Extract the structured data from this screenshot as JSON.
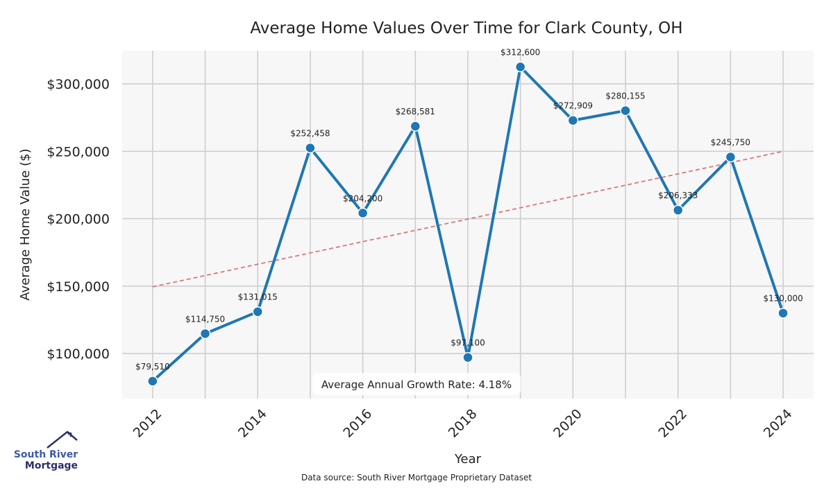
{
  "chart_data": {
    "type": "line",
    "title": "Average Home Values Over Time for Clark County, OH",
    "xlabel": "Year",
    "ylabel": "Average Home Value ($)",
    "x": [
      2012,
      2013,
      2014,
      2015,
      2016,
      2017,
      2018,
      2019,
      2020,
      2021,
      2022,
      2023,
      2024
    ],
    "series": [
      {
        "name": "Average Home Value",
        "color": "#1f77b4",
        "values": [
          79510,
          114750,
          131015,
          252458,
          204200,
          268581,
          97100,
          312600,
          272909,
          280155,
          206333,
          245750,
          130000
        ],
        "labels": [
          "$79,510",
          "$114,750",
          "$131,015",
          "$252,458",
          "$204,200",
          "$268,581",
          "$97,100",
          "$312,600",
          "$272,909",
          "$280,155",
          "$206,333",
          "$245,750",
          "$130,000"
        ]
      }
    ],
    "trendline": {
      "color": "#d9777b",
      "start": [
        2012,
        149500
      ],
      "end": [
        2024,
        250000
      ]
    },
    "xticks": [
      2012,
      2014,
      2016,
      2018,
      2020,
      2022,
      2024
    ],
    "xtick_labels": [
      "2012",
      "2014",
      "2016",
      "2018",
      "2020",
      "2022",
      "2024"
    ],
    "yticks": [
      100000,
      150000,
      200000,
      250000,
      300000
    ],
    "ytick_labels": [
      "$100,000",
      "$150,000",
      "$200,000",
      "$250,000",
      "$300,000"
    ],
    "xlim": [
      2011.42,
      2024.58
    ],
    "ylim": [
      66600,
      324700
    ],
    "grid": true,
    "annotation": "Average Annual Growth Rate: 4.18%"
  },
  "footer": {
    "source": "Data source: South River Mortgage Proprietary Dataset"
  },
  "logo": {
    "line1": "South River",
    "line2": "Mortgage"
  }
}
